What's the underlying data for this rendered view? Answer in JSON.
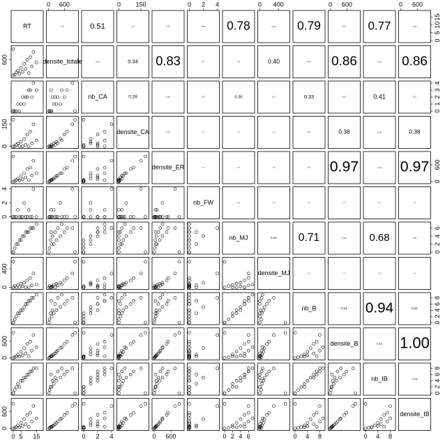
{
  "chart_data": {
    "type": "pairs",
    "variables": [
      {
        "name": "RT",
        "lim": [
          0,
          18
        ],
        "xticks": [
          0,
          5,
          15
        ],
        "yticks": [
          0,
          5,
          10,
          15
        ]
      },
      {
        "name": "densite_totale",
        "lim": [
          0,
          1050
        ],
        "xticks": [
          0,
          600
        ],
        "yticks": [
          600
        ]
      },
      {
        "name": "nb_CA",
        "lim": [
          0,
          4
        ],
        "xticks": [
          0,
          2,
          4
        ],
        "yticks": [
          0,
          1,
          2,
          3,
          4
        ]
      },
      {
        "name": "densite_CA",
        "lim": [
          0,
          190
        ],
        "xticks": [
          0,
          150
        ],
        "yticks": [
          0,
          150
        ]
      },
      {
        "name": "densite_ER",
        "lim": [
          0,
          1000
        ],
        "xticks": [
          0,
          600
        ],
        "yticks": [
          0,
          600
        ]
      },
      {
        "name": "nb_FW",
        "lim": [
          0,
          4
        ],
        "xticks": [
          0,
          2,
          4
        ],
        "yticks": [
          0,
          2,
          4
        ]
      },
      {
        "name": "nb_MJ",
        "lim": [
          0,
          7
        ],
        "xticks": [
          0,
          2,
          4,
          6
        ],
        "yticks": [
          0,
          2,
          4,
          6
        ]
      },
      {
        "name": "densite_MJ",
        "lim": [
          0,
          600
        ],
        "xticks": [
          0,
          400
        ],
        "yticks": [
          0,
          400
        ]
      },
      {
        "name": "nb_B",
        "lim": [
          0,
          9
        ],
        "xticks": [
          0,
          4,
          8
        ],
        "yticks": [
          0,
          2,
          4,
          6,
          8
        ]
      },
      {
        "name": "densite_B",
        "lim": [
          0,
          1000
        ],
        "xticks": [
          0,
          600
        ],
        "yticks": [
          0,
          600
        ]
      },
      {
        "name": "nb_IB",
        "lim": [
          0,
          9
        ],
        "xticks": [
          0,
          4,
          8
        ],
        "yticks": [
          0,
          2,
          4,
          6,
          8
        ]
      },
      {
        "name": "densite_IB",
        "lim": [
          0,
          1000
        ],
        "xticks": [
          0,
          600
        ],
        "yticks": [
          0,
          600
        ]
      }
    ],
    "correlations": [
      [
        0.11,
        0.51,
        0.09,
        0.12,
        0.13,
        0.78,
        0.14,
        0.79,
        0.11,
        0.77,
        0.13
      ],
      [
        0.13,
        0.34,
        0.83,
        0.06,
        0.09,
        {
          "value": 0.4,
          "label": "0.40"
        },
        0.12,
        0.86,
        0.13,
        0.86
      ],
      [
        0.29,
        0.13,
        0.12,
        0.26,
        0.11,
        0.33,
        0.12,
        0.41,
        0.12
      ],
      [
        0.12,
        0.05,
        0.07,
        0.06,
        0.11,
        0.38,
        0.14,
        0.38
      ],
      [
        0.07,
        0.09,
        0.06,
        0.11,
        0.97,
        0.13,
        0.97
      ],
      [
        0.06,
        0.08,
        0.05,
        0.09,
        0.07,
        0.09
      ],
      [
        0.21,
        0.71,
        0.14,
        0.68,
        0.13
      ],
      [
        0.06,
        0.09,
        0.08,
        0.09
      ],
      [
        0.21,
        0.94,
        0.21
      ],
      [
        0.18,
        {
          "value": 1,
          "label": "1.00"
        }
      ],
      [
        0.18
      ]
    ],
    "observations": [
      [
        1,
        40,
        0,
        0,
        20,
        0,
        1,
        30,
        1,
        20,
        1,
        20
      ],
      [
        2,
        120,
        0,
        10,
        60,
        0,
        2,
        0,
        2,
        60,
        2,
        50
      ],
      [
        3,
        200,
        1,
        20,
        100,
        1,
        2,
        50,
        3,
        120,
        3,
        110
      ],
      [
        4,
        80,
        0,
        0,
        40,
        0,
        3,
        0,
        3,
        40,
        2,
        40
      ],
      [
        5,
        300,
        1,
        30,
        200,
        0,
        3,
        80,
        4,
        220,
        4,
        200
      ],
      [
        6,
        150,
        2,
        0,
        80,
        0,
        4,
        20,
        4,
        90,
        4,
        80
      ],
      [
        7,
        450,
        1,
        50,
        300,
        2,
        4,
        100,
        5,
        350,
        5,
        330
      ],
      [
        8,
        250,
        2,
        10,
        150,
        0,
        5,
        0,
        6,
        160,
        5,
        150
      ],
      [
        9,
        600,
        2,
        80,
        450,
        0,
        5,
        150,
        6,
        500,
        6,
        480
      ],
      [
        10,
        100,
        3,
        0,
        50,
        1,
        5,
        0,
        7,
        60,
        6,
        60
      ],
      [
        11,
        700,
        3,
        100,
        500,
        0,
        6,
        200,
        7,
        580,
        7,
        560
      ],
      [
        12,
        350,
        2,
        20,
        220,
        0,
        6,
        40,
        8,
        260,
        7,
        250
      ],
      [
        13,
        900,
        4,
        150,
        750,
        4,
        6,
        300,
        8,
        820,
        8,
        800
      ],
      [
        15,
        500,
        3,
        40,
        300,
        0,
        7,
        60,
        9,
        380,
        8,
        360
      ],
      [
        0,
        1000,
        0,
        180,
        900,
        0,
        0,
        550,
        0,
        900,
        0,
        880
      ],
      [
        0,
        20,
        0,
        0,
        0,
        0,
        0,
        0,
        0,
        0,
        0,
        0
      ]
    ]
  }
}
